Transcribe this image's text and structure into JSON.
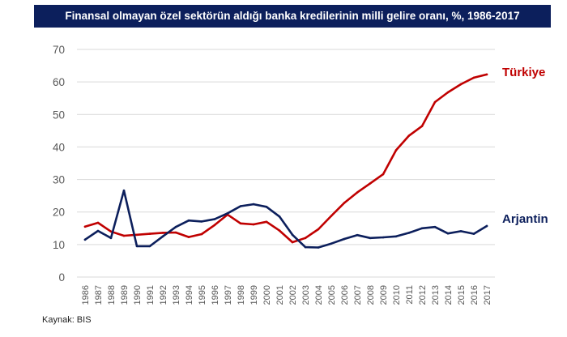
{
  "colors": {
    "title_bg": "#0c1f5c",
    "turkiye": "#c00000",
    "arjantin": "#0c1f5c",
    "grid": "#d9d9d9",
    "axis_text": "#595959"
  },
  "source": "Kaynak: BIS",
  "chart_data": {
    "type": "line",
    "title": "Finansal olmayan özel sektörün aldığı banka kredilerinin milli gelire oranı, %, 1986-2017",
    "xlabel": "",
    "ylabel": "",
    "ylim": [
      0,
      70
    ],
    "yticks": [
      "0",
      "10",
      "20",
      "30",
      "40",
      "50",
      "60",
      "70"
    ],
    "grid": true,
    "categories": [
      "1986",
      "1987",
      "1988",
      "1989",
      "1990",
      "1991",
      "1992",
      "1993",
      "1994",
      "1995",
      "1996",
      "1997",
      "1998",
      "1999",
      "2000",
      "2001",
      "2002",
      "2003",
      "2004",
      "2005",
      "2006",
      "2007",
      "2008",
      "2009",
      "2010",
      "2011",
      "2012",
      "2013",
      "2014",
      "2015",
      "2016",
      "2017"
    ],
    "series": [
      {
        "name": "Türkiye",
        "values": [
          15.5,
          16.7,
          14.0,
          12.7,
          13.0,
          13.3,
          13.6,
          13.7,
          12.3,
          13.2,
          16.0,
          19.2,
          16.5,
          16.2,
          17.0,
          14.3,
          10.7,
          12.0,
          14.7,
          18.8,
          22.8,
          26.0,
          28.8,
          31.6,
          39.0,
          43.5,
          46.4,
          53.8,
          56.8,
          59.3,
          61.3,
          62.3
        ]
      },
      {
        "name": "Arjantin",
        "values": [
          11.5,
          14.2,
          12.0,
          26.6,
          9.5,
          9.5,
          12.5,
          15.4,
          17.4,
          17.1,
          17.8,
          19.6,
          21.8,
          22.4,
          21.6,
          18.6,
          13.0,
          9.2,
          9.1,
          10.3,
          11.7,
          12.9,
          12.0,
          12.2,
          12.5,
          13.6,
          15.0,
          15.4,
          13.4,
          14.1,
          13.3,
          15.7
        ]
      }
    ]
  }
}
